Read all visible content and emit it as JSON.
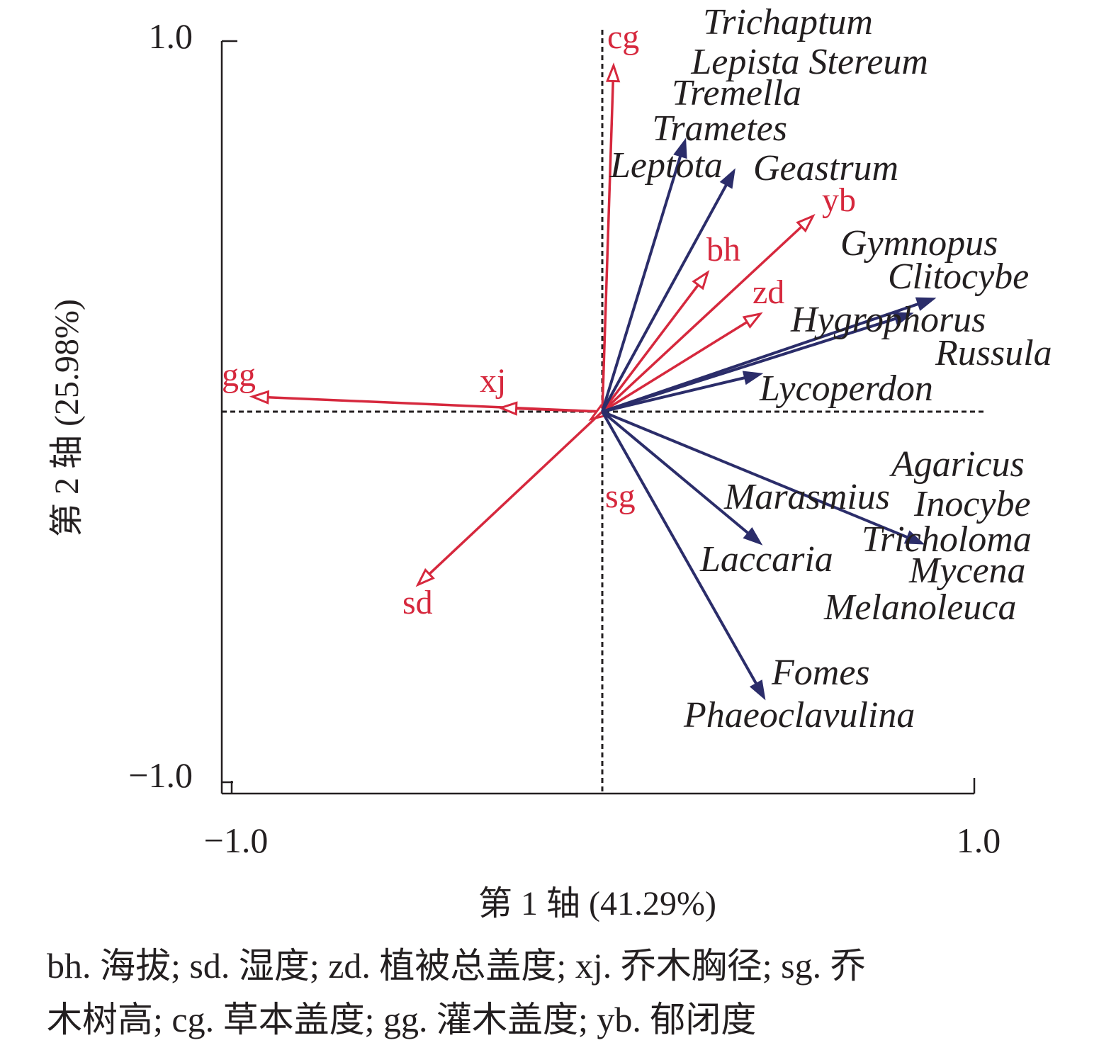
{
  "chart_data": {
    "type": "biplot",
    "xlabel": "第 1 轴 (41.29%)",
    "ylabel": "第 2 轴 (25.98%)",
    "xlim": [
      -1.0,
      1.0
    ],
    "ylim": [
      -1.0,
      1.0
    ],
    "x_ticks": [
      "−1.0",
      "1.0"
    ],
    "y_ticks": [
      "1.0",
      "−1.0"
    ],
    "colors": {
      "environment": "#d6283d",
      "species": "#2b2d6a",
      "axis": "#231f20"
    },
    "environment_vectors": [
      {
        "name": "cg",
        "x": 0.03,
        "y": 0.92
      },
      {
        "name": "yb",
        "x": 0.56,
        "y": 0.52
      },
      {
        "name": "bh",
        "x": 0.28,
        "y": 0.37
      },
      {
        "name": "zd",
        "x": 0.42,
        "y": 0.26
      },
      {
        "name": "gg",
        "x": -0.93,
        "y": 0.04
      },
      {
        "name": "xj",
        "x": -0.27,
        "y": 0.01
      },
      {
        "name": "sg",
        "x": -0.03,
        "y": -0.02
      },
      {
        "name": "sd",
        "x": -0.49,
        "y": -0.46
      }
    ],
    "species_vectors": [
      {
        "name": "Leptota",
        "x": 0.22,
        "y": 0.72
      },
      {
        "name": "Geastrum",
        "x": 0.35,
        "y": 0.64
      },
      {
        "name": "Clitocybe",
        "x": 0.88,
        "y": 0.3
      },
      {
        "name": "Hygrophorus",
        "x": 0.82,
        "y": 0.26
      },
      {
        "name": "Lycoperdon",
        "x": 0.42,
        "y": 0.1
      },
      {
        "name": "Tricholoma",
        "x": 0.85,
        "y": -0.35
      },
      {
        "name": "Laccaria",
        "x": 0.42,
        "y": -0.35
      },
      {
        "name": "Fomes",
        "x": 0.43,
        "y": -0.76
      }
    ],
    "species_labels": [
      "Trichaptum",
      "Lepista Stereum",
      "Tremella",
      "Trametes",
      "Leptota",
      "Geastrum",
      "Gymnopus",
      "Clitocybe",
      "Hygrophorus",
      "Russula",
      "Lycoperdon",
      "Agaricus",
      "Marasmius",
      "Inocybe",
      "Tricholoma",
      "Laccaria",
      "Mycena",
      "Melanoleuca",
      "Fomes",
      "Phaeoclavulina"
    ]
  },
  "caption": {
    "line1": "bh. 海拔; sd. 湿度; zd. 植被总盖度; xj. 乔木胸径; sg. 乔",
    "line2": "木树高; cg. 草本盖度; gg. 灌木盖度; yb. 郁闭度"
  }
}
